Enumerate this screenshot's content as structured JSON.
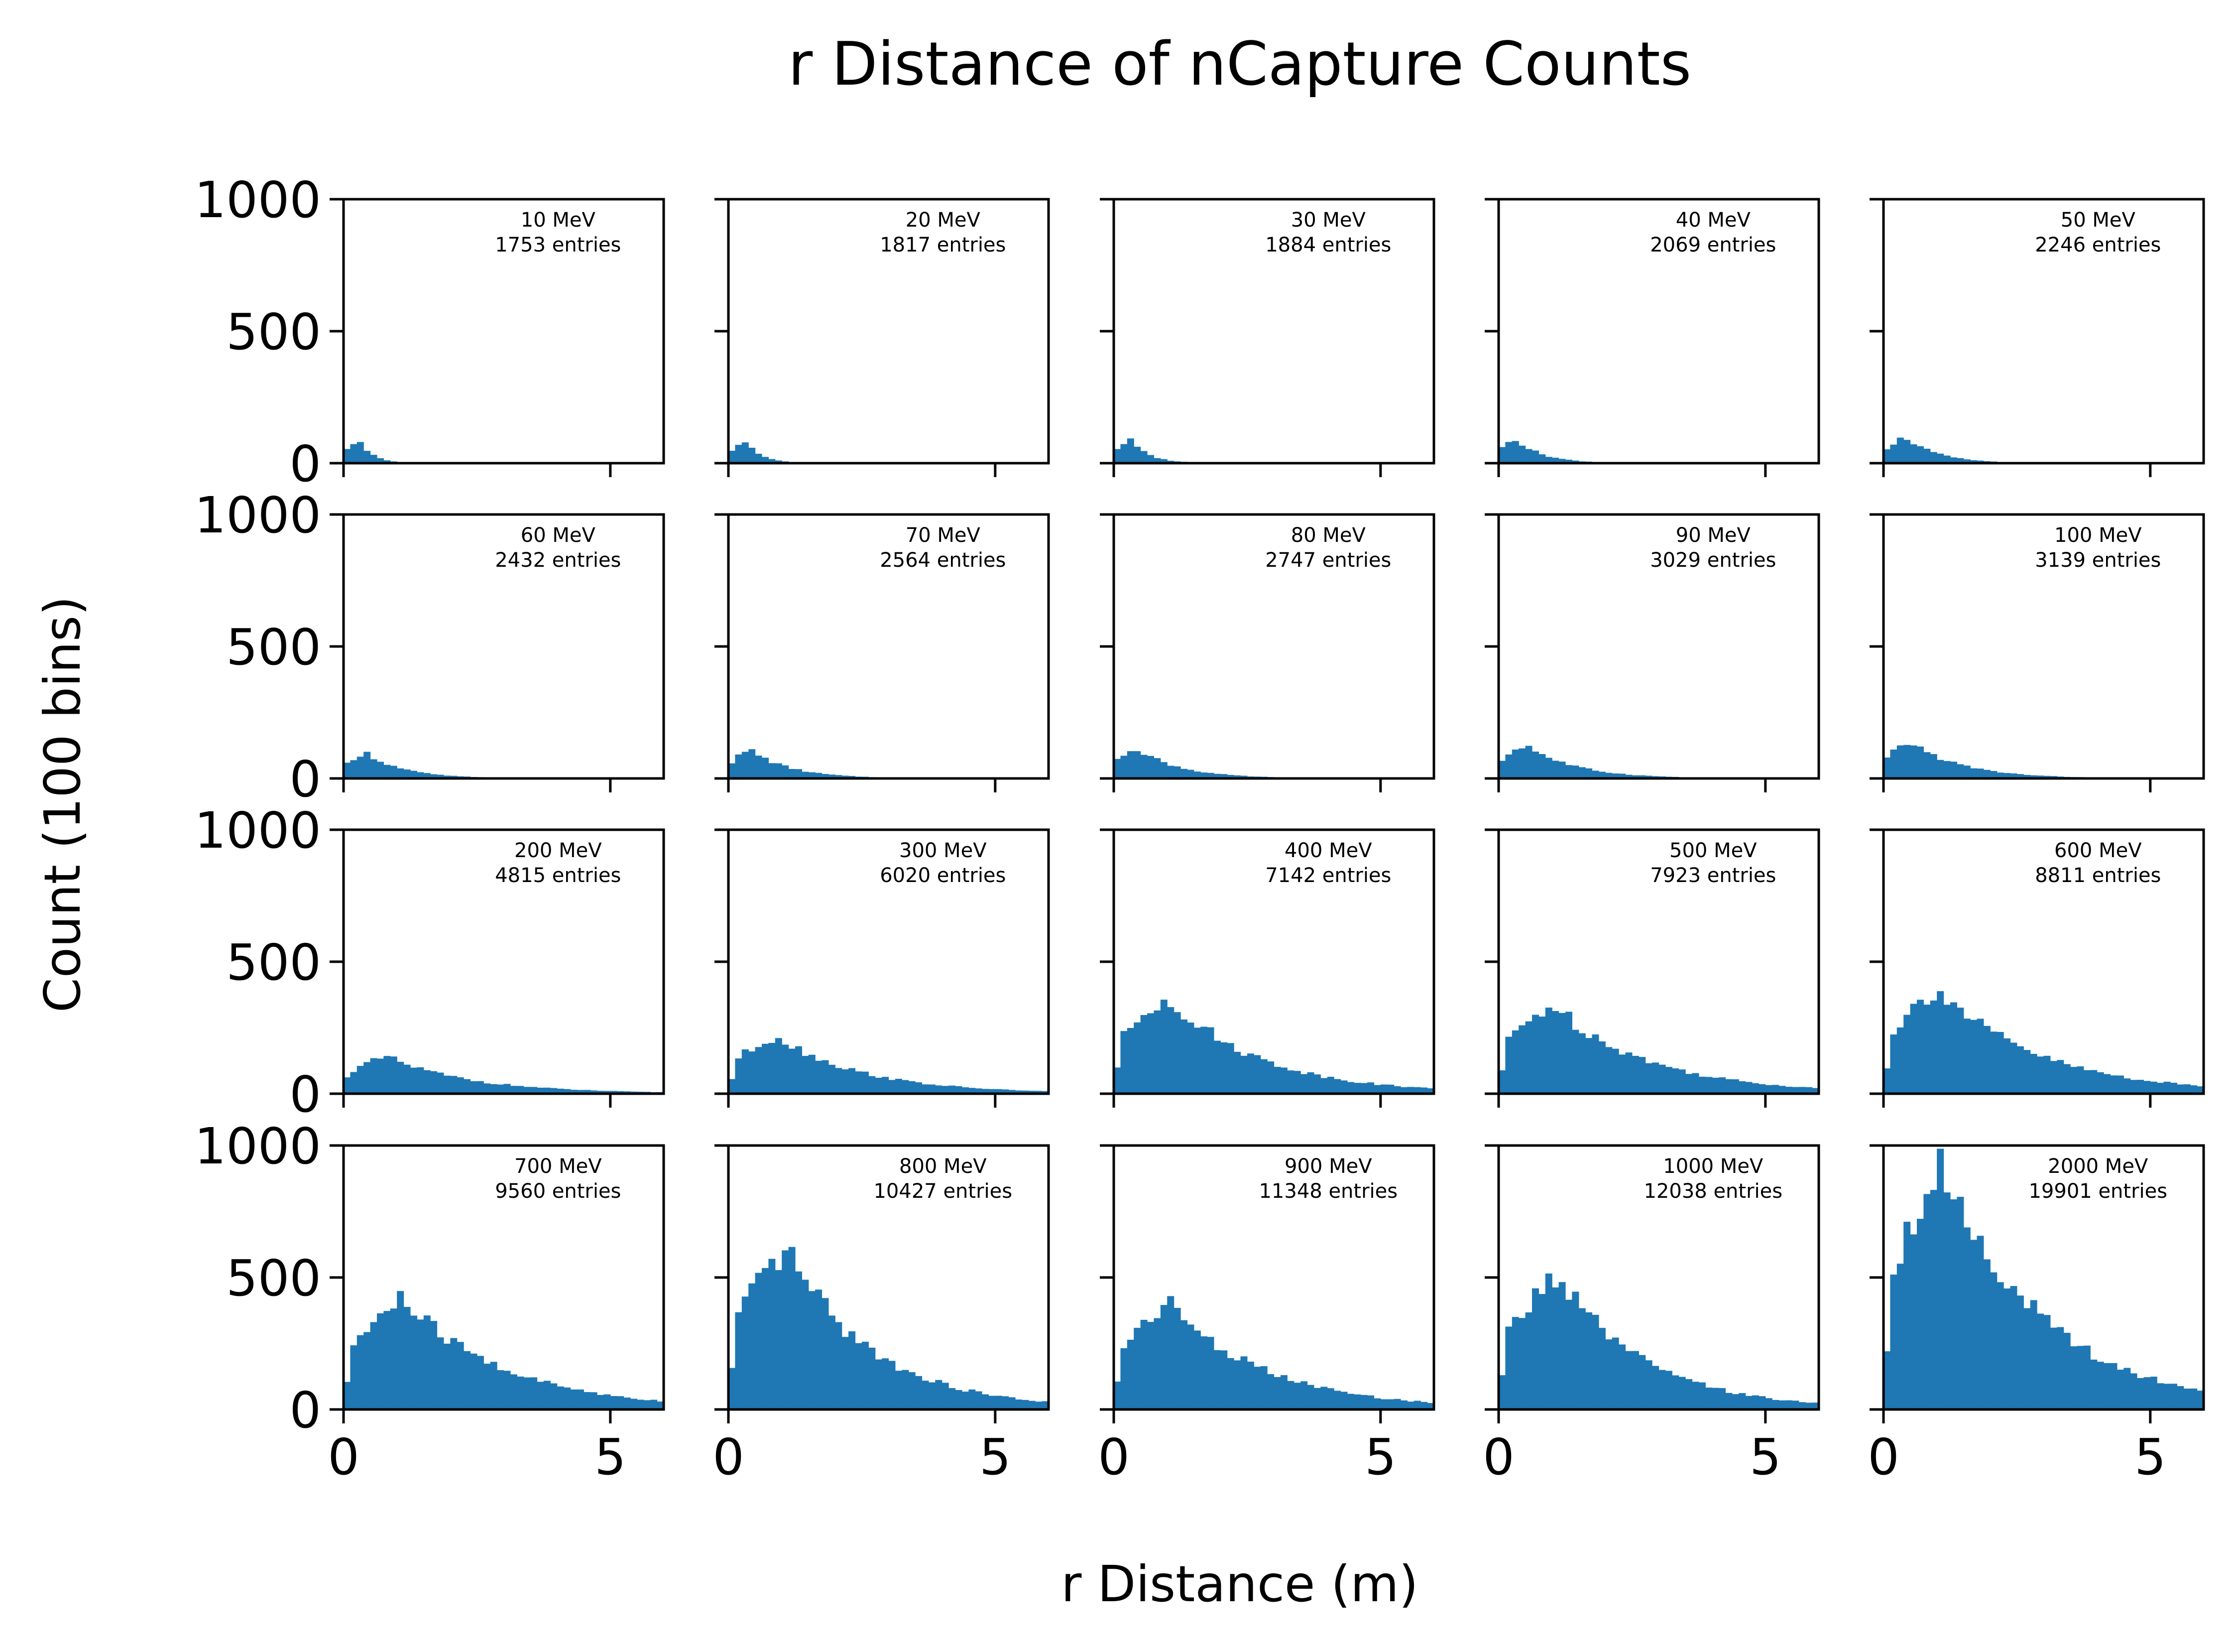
{
  "title": "r Distance of nCapture Counts",
  "xlabel": "r Distance (m)",
  "ylabel": "Count (100 bins)",
  "colors": {
    "bar": "#1f77b4",
    "axes": "#000000",
    "background": "#ffffff"
  },
  "chart_data": {
    "type": "bar",
    "layout": {
      "rows": 4,
      "cols": 5,
      "sharex": true,
      "sharey": true
    },
    "xlim": [
      0,
      6
    ],
    "ylim": [
      0,
      1000
    ],
    "xticks": [
      0,
      5
    ],
    "xtick_labels": [
      "0",
      "5"
    ],
    "yticks": [
      0,
      500,
      1000
    ],
    "ytick_labels": [
      "0",
      "500",
      "1000"
    ],
    "panels": [
      {
        "label": "10 MeV",
        "entries_label": "1753 entries",
        "peak_x": 0.3,
        "peak": 85,
        "tail": 0.25
      },
      {
        "label": "20 MeV",
        "entries_label": "1817 entries",
        "peak_x": 0.3,
        "peak": 85,
        "tail": 0.3
      },
      {
        "label": "30 MeV",
        "entries_label": "1884 entries",
        "peak_x": 0.3,
        "peak": 90,
        "tail": 0.35
      },
      {
        "label": "40 MeV",
        "entries_label": "2069 entries",
        "peak_x": 0.3,
        "peak": 95,
        "tail": 0.5
      },
      {
        "label": "50 MeV",
        "entries_label": "2246 entries",
        "peak_x": 0.4,
        "peak": 100,
        "tail": 0.6
      },
      {
        "label": "60 MeV",
        "entries_label": "2432 entries",
        "peak_x": 0.4,
        "peak": 100,
        "tail": 0.7
      },
      {
        "label": "70 MeV",
        "entries_label": "2564 entries",
        "peak_x": 0.4,
        "peak": 110,
        "tail": 0.75
      },
      {
        "label": "80 MeV",
        "entries_label": "2747 entries",
        "peak_x": 0.4,
        "peak": 120,
        "tail": 0.8
      },
      {
        "label": "90 MeV",
        "entries_label": "3029 entries",
        "peak_x": 0.5,
        "peak": 130,
        "tail": 0.9
      },
      {
        "label": "100 MeV",
        "entries_label": "3139 entries",
        "peak_x": 0.5,
        "peak": 140,
        "tail": 0.95
      },
      {
        "label": "200 MeV",
        "entries_label": "4815 entries",
        "peak_x": 0.8,
        "peak": 140,
        "tail": 1.6
      },
      {
        "label": "300 MeV",
        "entries_label": "6020 entries",
        "peak_x": 0.9,
        "peak": 220,
        "tail": 1.6
      },
      {
        "label": "400 MeV",
        "entries_label": "7142 entries",
        "peak_x": 1.0,
        "peak": 370,
        "tail": 1.7
      },
      {
        "label": "500 MeV",
        "entries_label": "7923 entries",
        "peak_x": 1.0,
        "peak": 340,
        "tail": 1.8
      },
      {
        "label": "600 MeV",
        "entries_label": "8811 entries",
        "peak_x": 1.0,
        "peak": 400,
        "tail": 1.9
      },
      {
        "label": "700 MeV",
        "entries_label": "9560 entries",
        "peak_x": 1.1,
        "peak": 420,
        "tail": 1.9
      },
      {
        "label": "800 MeV",
        "entries_label": "10427 entries",
        "peak_x": 1.1,
        "peak": 600,
        "tail": 1.6
      },
      {
        "label": "900 MeV",
        "entries_label": "11348 entries",
        "peak_x": 1.0,
        "peak": 410,
        "tail": 1.8
      },
      {
        "label": "1000 MeV",
        "entries_label": "12038 entries",
        "peak_x": 1.1,
        "peak": 510,
        "tail": 1.6
      },
      {
        "label": "2000 MeV",
        "entries_label": "19901 entries",
        "peak_x": 1.1,
        "peak": 930,
        "tail": 1.9
      }
    ]
  }
}
